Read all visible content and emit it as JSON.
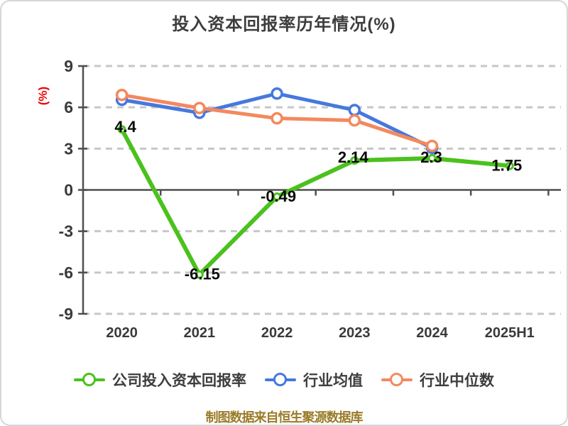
{
  "title": "投入资本回报率历年情况(%)",
  "y_axis_label": "(%)",
  "footer": "制图数据来自恒生聚源数据库",
  "legend": [
    {
      "label": "公司投入资本回报率",
      "color": "#4bc11d"
    },
    {
      "label": "行业均值",
      "color": "#4678de"
    },
    {
      "label": "行业中位数",
      "color": "#f3895e"
    }
  ],
  "chart_data": {
    "type": "line",
    "title": "投入资本回报率历年情况(%)",
    "ylabel": "(%)",
    "categories": [
      "2020",
      "2021",
      "2022",
      "2023",
      "2024",
      "2025H1"
    ],
    "series": [
      {
        "name": "公司投入资本回报率",
        "color": "#4bc11d",
        "values": [
          4.4,
          -6.15,
          -0.49,
          2.14,
          2.3,
          1.75
        ],
        "point_labels": [
          "4.4",
          "-6.15",
          "-0.49",
          "2.14",
          "2.3",
          "1.75"
        ]
      },
      {
        "name": "行业均值",
        "color": "#4678de",
        "values": [
          6.55,
          5.6,
          7.0,
          5.8,
          3.05,
          null
        ],
        "point_labels": null
      },
      {
        "name": "行业中位数",
        "color": "#f3895e",
        "values": [
          6.9,
          5.95,
          5.2,
          5.05,
          3.2,
          null
        ],
        "point_labels": null
      }
    ],
    "ylim": [
      -9,
      9
    ],
    "yticks": [
      9,
      6,
      3,
      0,
      -3,
      -6,
      -9
    ],
    "grid": "dashed-horizontal",
    "legend_position": "bottom",
    "source_note": "制图数据来自恒生聚源数据库"
  },
  "colors": {
    "title_text": "#3d3d3d",
    "axis": "#4f4f4f",
    "gridline": "#c7c7c7",
    "value_label": "#0a0a0a",
    "ylabel_red": "#f20000",
    "footer_gold": "#9a7b28",
    "company_green": "#4bc11d",
    "industry_mean_blue": "#4678de",
    "industry_median_orange": "#f3895e"
  }
}
